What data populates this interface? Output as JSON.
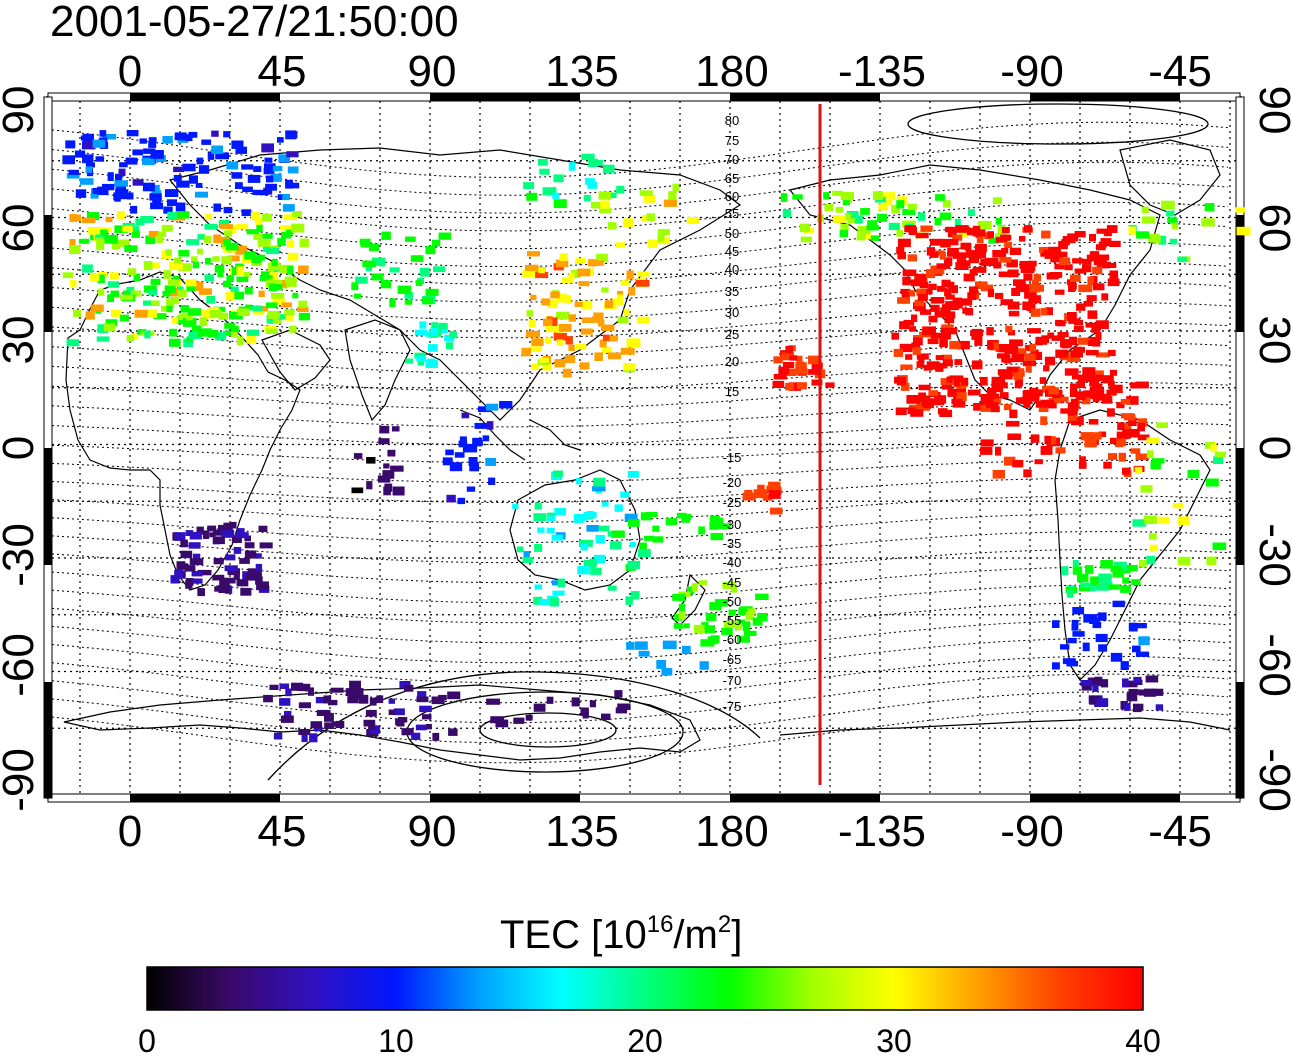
{
  "title": "2001-05-27/21:50:00",
  "map": {
    "x_tick_labels": [
      "0",
      "45",
      "90",
      "135",
      "180",
      "-135",
      "-90",
      "-45"
    ],
    "y_tick_labels": [
      "90",
      "60",
      "30",
      "0",
      "-30",
      "-60",
      "-90"
    ],
    "grid": true,
    "terminator_longitude": -153,
    "terminator_color": "#e01010",
    "contour_labels": [
      "80",
      "75",
      "70",
      "65",
      "60",
      "55",
      "50",
      "45",
      "40",
      "35",
      "30",
      "25",
      "20",
      "15",
      "-15",
      "-20",
      "-25",
      "-30",
      "-35",
      "-40",
      "-45",
      "-50",
      "-55",
      "-60",
      "-65",
      "-70",
      "-75"
    ]
  },
  "colorbar": {
    "label_main": "TEC  [10",
    "label_sup": "16",
    "label_mid": "/m",
    "label_sup2": "2",
    "label_end": "]",
    "ticks": [
      "0",
      "10",
      "20",
      "30",
      "40"
    ],
    "min": 0,
    "max": 40,
    "colors": [
      "#000000",
      "#3a0a6a",
      "#3010c0",
      "#0018ff",
      "#00a0ff",
      "#00ffff",
      "#00ff80",
      "#00ff00",
      "#a0ff00",
      "#ffff00",
      "#ffa000",
      "#ff4000",
      "#ff0000"
    ]
  }
}
